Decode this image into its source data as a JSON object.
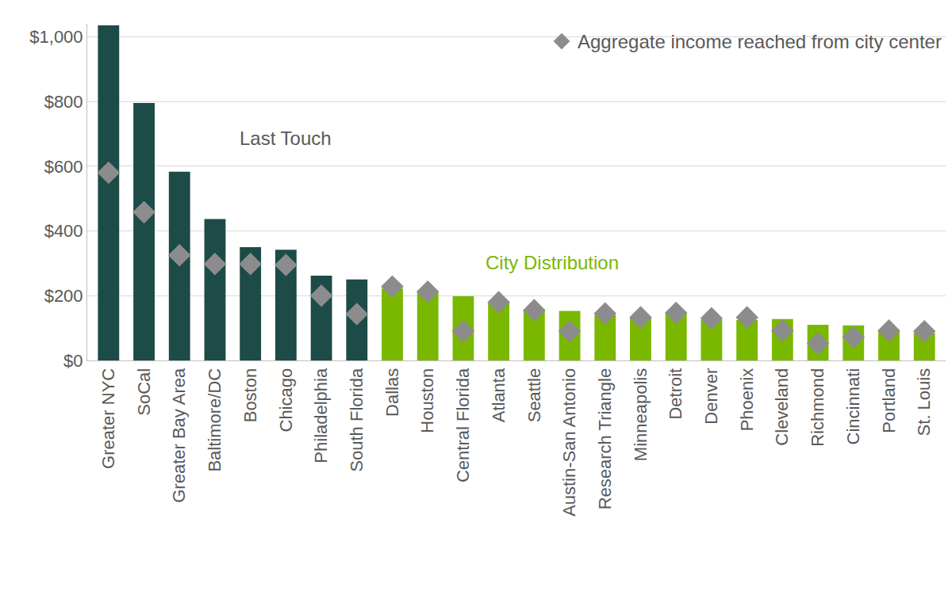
{
  "chart_data": {
    "type": "bar",
    "categories": [
      "Greater NYC",
      "SoCal",
      "Greater Bay Area",
      "Baltimore/DC",
      "Boston",
      "Chicago",
      "Philadelphia",
      "South Florida",
      "Dallas",
      "Houston",
      "Central Florida",
      "Atlanta",
      "Seattle",
      "Austin-San Antonio",
      "Research Triangle",
      "Minneapolis",
      "Detroit",
      "Denver",
      "Phoenix",
      "Cleveland",
      "Richmond",
      "Cincinnati",
      "Portland",
      "St. Louis"
    ],
    "series": [
      {
        "name": "Last Touch",
        "type": "bar",
        "color": "#1d4b47",
        "values": [
          1035,
          795,
          583,
          437,
          350,
          342,
          262,
          250,
          null,
          null,
          null,
          null,
          null,
          null,
          null,
          null,
          null,
          null,
          null,
          null,
          null,
          null,
          null,
          null
        ]
      },
      {
        "name": "City Distribution",
        "type": "bar",
        "color": "#7ab800",
        "values": [
          null,
          null,
          null,
          null,
          null,
          null,
          null,
          null,
          222,
          210,
          198,
          180,
          158,
          153,
          140,
          130,
          145,
          125,
          125,
          128,
          110,
          108,
          90,
          85
        ]
      },
      {
        "name": "Aggregate income reached from city center",
        "type": "scatter",
        "marker": "diamond",
        "color": "#8c8c8c",
        "values": [
          580,
          458,
          325,
          298,
          298,
          295,
          200,
          143,
          228,
          212,
          90,
          180,
          155,
          90,
          145,
          133,
          147,
          130,
          133,
          92,
          52,
          72,
          92,
          90
        ]
      }
    ],
    "ylim": [
      0,
      1040
    ],
    "yticks": [
      {
        "value": 0,
        "label": "$0"
      },
      {
        "value": 200,
        "label": "$200"
      },
      {
        "value": 400,
        "label": "$400"
      },
      {
        "value": 600,
        "label": "$600"
      },
      {
        "value": 800,
        "label": "$800"
      },
      {
        "value": 1000,
        "label": "$1,000"
      }
    ],
    "grid": true,
    "legend": "top right"
  }
}
